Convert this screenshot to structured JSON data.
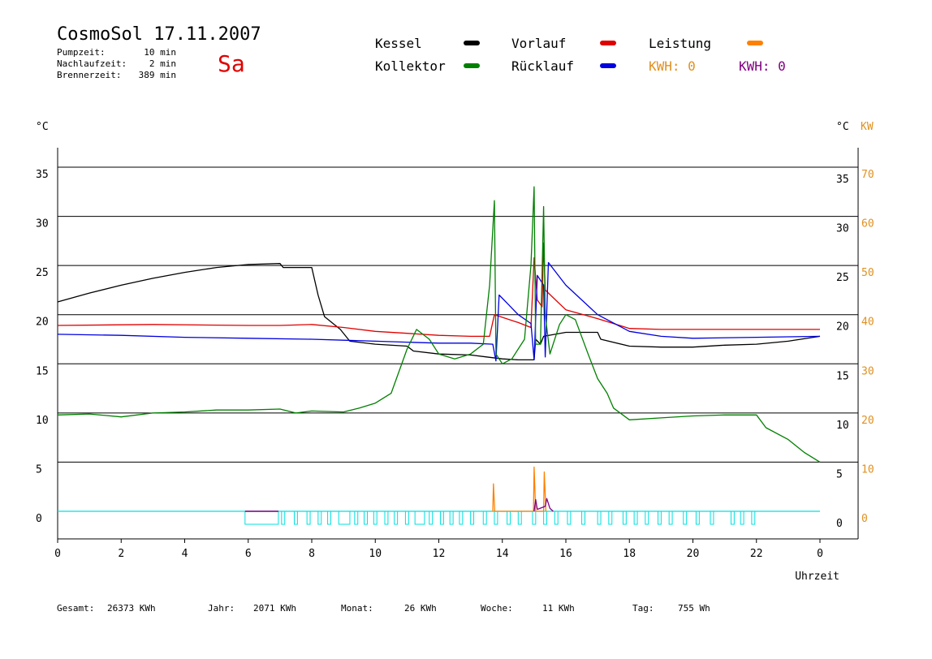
{
  "header": {
    "title": "CosmoSol 17.11.2007",
    "day": "Sa",
    "pumpzeit_label": "Pumpzeit:",
    "pumpzeit_value": "10 min",
    "nachlaufzeit_label": "Nachlaufzeit:",
    "nachlaufzeit_value": "2 min",
    "brennerzeit_label": "Brennerzeit:",
    "brennerzeit_value": "389 min"
  },
  "legend": {
    "kessel": "Kessel",
    "kollektor": "Kollektor",
    "vorlauf": "Vorlauf",
    "ruecklauf": "Rücklauf",
    "leistung": "Leistung",
    "kwh_orange": "KWH: 0",
    "kwh_purple": "KWH: 0"
  },
  "colors": {
    "kessel": "#000000",
    "kollektor": "#008000",
    "vorlauf": "#e00000",
    "ruecklauf": "#0000e0",
    "leistung": "#ff8000",
    "kwh_purple": "#800080",
    "pump": "#00e0e0",
    "day": "#e00000"
  },
  "footer": {
    "gesamt_label": "Gesamt:",
    "gesamt_value": "26373 KWh",
    "jahr_label": "Jahr:",
    "jahr_value": "2071 KWh",
    "monat_label": "Monat:",
    "monat_value": "26 KWh",
    "woche_label": "Woche:",
    "woche_value": "11 KWh",
    "tag_label": "Tag:",
    "tag_value": "755 Wh"
  },
  "chart_data": {
    "type": "line",
    "xlabel": "Uhrzeit",
    "ylabel_left": "°C",
    "ylabel_right": "°C KW",
    "xlim": [
      0,
      24
    ],
    "ylim": [
      -2.7,
      37
    ],
    "y2lim": [
      -5.4,
      74
    ],
    "x_ticks": [
      "0",
      "2",
      "4",
      "6",
      "8",
      "10",
      "12",
      "14",
      "16",
      "18",
      "20",
      "22",
      "0"
    ],
    "y_ticks": [
      "0",
      "5",
      "10",
      "15",
      "20",
      "25",
      "30",
      "35"
    ],
    "y2_ticks": [
      "0",
      "10",
      "20",
      "30",
      "40",
      "50",
      "60",
      "70"
    ],
    "gridlines": [
      5,
      10,
      15,
      20,
      25,
      30,
      35
    ],
    "series": [
      {
        "name": "Kessel",
        "color": "#000000",
        "points": [
          [
            0,
            21.3
          ],
          [
            1,
            22.2
          ],
          [
            2,
            23.0
          ],
          [
            3,
            23.7
          ],
          [
            4,
            24.3
          ],
          [
            5,
            24.8
          ],
          [
            6,
            25.1
          ],
          [
            7,
            25.2
          ],
          [
            7.1,
            24.8
          ],
          [
            8.0,
            24.8
          ],
          [
            8.2,
            22.0
          ],
          [
            8.4,
            19.8
          ],
          [
            8.9,
            18.5
          ],
          [
            9.2,
            17.3
          ],
          [
            10,
            17.0
          ],
          [
            11,
            16.8
          ],
          [
            11.2,
            16.3
          ],
          [
            12,
            16.0
          ],
          [
            13,
            15.9
          ],
          [
            13.5,
            15.7
          ],
          [
            14,
            15.5
          ],
          [
            14.5,
            15.4
          ],
          [
            15.0,
            15.4
          ],
          [
            15.05,
            17.5
          ],
          [
            15.2,
            17.0
          ],
          [
            15.3,
            17.8
          ],
          [
            16,
            18.2
          ],
          [
            17,
            18.2
          ],
          [
            17.1,
            17.5
          ],
          [
            18,
            16.8
          ],
          [
            19,
            16.7
          ],
          [
            20,
            16.7
          ],
          [
            21,
            16.9
          ],
          [
            22,
            17.0
          ],
          [
            23,
            17.3
          ],
          [
            24,
            17.8
          ]
        ]
      },
      {
        "name": "Vorlauf",
        "color": "#e00000",
        "points": [
          [
            0,
            18.9
          ],
          [
            3,
            19.0
          ],
          [
            6,
            18.9
          ],
          [
            7,
            18.9
          ],
          [
            8,
            19.0
          ],
          [
            9,
            18.7
          ],
          [
            10,
            18.3
          ],
          [
            11,
            18.1
          ],
          [
            12,
            17.9
          ],
          [
            13,
            17.8
          ],
          [
            13.6,
            17.8
          ],
          [
            13.75,
            20.0
          ],
          [
            14.5,
            19.2
          ],
          [
            14.9,
            18.7
          ],
          [
            15.0,
            25.8
          ],
          [
            15.1,
            21.5
          ],
          [
            15.25,
            20.8
          ],
          [
            15.3,
            27.3
          ],
          [
            15.35,
            22.5
          ],
          [
            16,
            20.5
          ],
          [
            17,
            19.6
          ],
          [
            18,
            18.6
          ],
          [
            19,
            18.5
          ],
          [
            20,
            18.5
          ],
          [
            22,
            18.5
          ],
          [
            24,
            18.5
          ]
        ]
      },
      {
        "name": "Rücklauf",
        "color": "#0000e0",
        "points": [
          [
            0,
            18.0
          ],
          [
            2,
            17.9
          ],
          [
            4,
            17.7
          ],
          [
            6,
            17.6
          ],
          [
            8,
            17.5
          ],
          [
            9,
            17.4
          ],
          [
            10,
            17.3
          ],
          [
            11,
            17.2
          ],
          [
            12,
            17.1
          ],
          [
            13,
            17.1
          ],
          [
            13.7,
            17.0
          ],
          [
            13.8,
            15.3
          ],
          [
            13.9,
            22.0
          ],
          [
            14.2,
            21.0
          ],
          [
            14.5,
            20.0
          ],
          [
            14.9,
            19.1
          ],
          [
            15.0,
            15.4
          ],
          [
            15.1,
            24.0
          ],
          [
            15.3,
            23.0
          ],
          [
            15.35,
            15.7
          ],
          [
            15.45,
            25.3
          ],
          [
            16,
            23.0
          ],
          [
            17,
            20.0
          ],
          [
            18,
            18.3
          ],
          [
            19,
            17.8
          ],
          [
            20,
            17.6
          ],
          [
            22,
            17.7
          ],
          [
            24,
            17.8
          ]
        ]
      },
      {
        "name": "Kollektor",
        "color": "#008000",
        "points": [
          [
            0,
            9.8
          ],
          [
            1,
            9.9
          ],
          [
            2,
            9.6
          ],
          [
            3,
            10.0
          ],
          [
            4,
            10.1
          ],
          [
            5,
            10.3
          ],
          [
            6,
            10.3
          ],
          [
            7,
            10.4
          ],
          [
            7.5,
            10.0
          ],
          [
            8,
            10.2
          ],
          [
            9,
            10.1
          ],
          [
            9.5,
            10.5
          ],
          [
            10,
            11.0
          ],
          [
            10.5,
            12.0
          ],
          [
            11,
            16.5
          ],
          [
            11.3,
            18.5
          ],
          [
            11.7,
            17.5
          ],
          [
            12,
            16.0
          ],
          [
            12.5,
            15.5
          ],
          [
            13,
            16.0
          ],
          [
            13.4,
            17.0
          ],
          [
            13.6,
            23.0
          ],
          [
            13.75,
            31.6
          ],
          [
            13.8,
            16.0
          ],
          [
            14,
            15.0
          ],
          [
            14.3,
            15.5
          ],
          [
            14.7,
            17.5
          ],
          [
            14.9,
            25.0
          ],
          [
            15.0,
            33.0
          ],
          [
            15.05,
            17.0
          ],
          [
            15.2,
            17.0
          ],
          [
            15.3,
            31.0
          ],
          [
            15.35,
            20.0
          ],
          [
            15.5,
            16.0
          ],
          [
            15.8,
            19.0
          ],
          [
            16.0,
            20.0
          ],
          [
            16.3,
            19.5
          ],
          [
            16.7,
            16.0
          ],
          [
            17,
            13.5
          ],
          [
            17.3,
            12.0
          ],
          [
            17.5,
            10.5
          ],
          [
            18,
            9.3
          ],
          [
            19,
            9.5
          ],
          [
            20,
            9.7
          ],
          [
            21,
            9.8
          ],
          [
            22,
            9.8
          ],
          [
            22.3,
            8.5
          ],
          [
            23,
            7.3
          ],
          [
            23.5,
            6.0
          ],
          [
            24,
            5.0
          ]
        ]
      },
      {
        "name": "Leistung",
        "color": "#ff8000",
        "points": [
          [
            0,
            0
          ],
          [
            13.7,
            0
          ],
          [
            13.72,
            2.8
          ],
          [
            13.76,
            0
          ],
          [
            14.98,
            0
          ],
          [
            15.0,
            4.5
          ],
          [
            15.05,
            0
          ],
          [
            15.3,
            0
          ],
          [
            15.32,
            4.0
          ],
          [
            15.37,
            0
          ],
          [
            24,
            0
          ]
        ]
      },
      {
        "name": "KWH",
        "color": "#800080",
        "points": [
          [
            0,
            0
          ],
          [
            15.0,
            0
          ],
          [
            15.05,
            1.2
          ],
          [
            15.1,
            0.2
          ],
          [
            15.35,
            0.5
          ],
          [
            15.4,
            1.3
          ],
          [
            15.5,
            0.3
          ],
          [
            15.6,
            0
          ],
          [
            24,
            0
          ]
        ]
      }
    ]
  }
}
